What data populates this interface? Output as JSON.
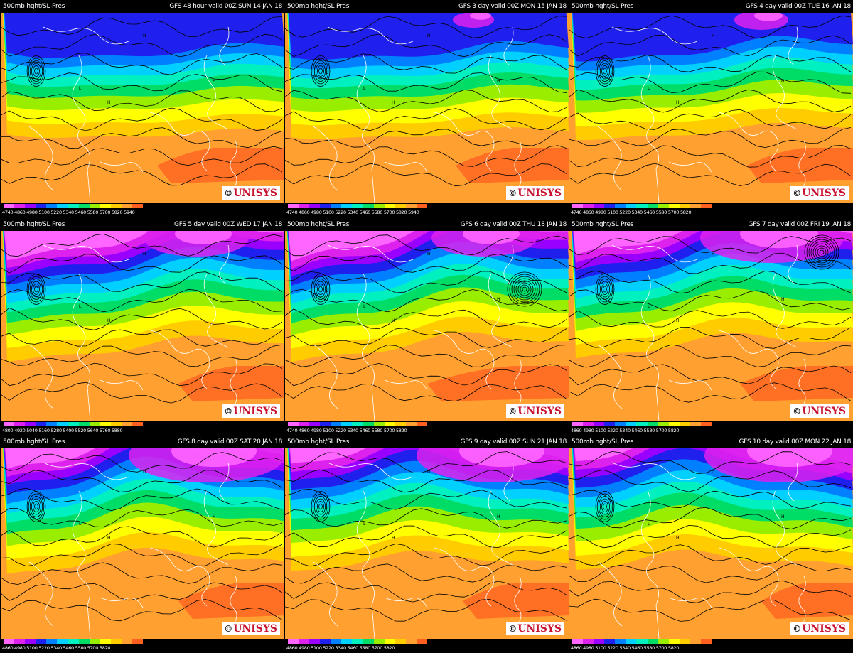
{
  "panels": [
    {
      "left_title": "500mb hght/SL Pres",
      "right_title": "GFS 48 hour valid 00Z SUN 14 JAN 18",
      "ticks": "4740 4860 4980 5100 5220 5340 5460 5580 5700 5820 5940",
      "logo": "UNISYS"
    },
    {
      "left_title": "500mb hght/SL Pres",
      "right_title": "GFS 3 day valid 00Z MON 15 JAN 18",
      "ticks": "4740 4860 4980 5100 5220 5340 5460 5580 5700 5820 5940",
      "logo": "UNISYS"
    },
    {
      "left_title": "500mb hght/SL Pres",
      "right_title": "GFS 4 day valid 00Z TUE 16 JAN 18",
      "ticks": "4740 4860 4980 5100 5220 5340 5460 5580 5700 5820",
      "logo": "UNISYS"
    },
    {
      "left_title": "500mb hght/SL Pres",
      "right_title": "GFS 5 day valid 00Z WED 17 JAN 18",
      "ticks": "4800 4920 5040 5160 5280 5400 5520 5640 5760 5880",
      "logo": "UNISYS"
    },
    {
      "left_title": "500mb hght/SL Pres",
      "right_title": "GFS 6 day valid 00Z THU 18 JAN 18",
      "ticks": "4740 4860 4980 5100 5220 5340 5460 5580 5700 5820",
      "logo": "UNISYS"
    },
    {
      "left_title": "500mb hght/SL Pres",
      "right_title": "GFS 7 day valid 00Z FRI 19 JAN 18",
      "ticks": "4860 4980 5100 5220 5340 5460 5580 5700 5820",
      "logo": "UNISYS"
    },
    {
      "left_title": "500mb hght/SL Pres",
      "right_title": "GFS 8 day valid 00Z SAT 20 JAN 18",
      "ticks": "4860 4980 5100 5220 5340 5460 5580 5700 5820",
      "logo": "UNISYS"
    },
    {
      "left_title": "500mb hght/SL Pres",
      "right_title": "GFS 9 day valid 00Z SUN 21 JAN 18",
      "ticks": "4860 4980 5100 5220 5340 5460 5580 5700 5820",
      "logo": "UNISYS"
    },
    {
      "left_title": "500mb hght/SL Pres",
      "right_title": "GFS 10 day valid 00Z MON 22 JAN 18",
      "ticks": "4860 4980 5100 5220 5340 5460 5580 5700 5820",
      "logo": "UNISYS"
    }
  ],
  "colors": {
    "background": "#000000",
    "coastline": "#ffffff",
    "isobar": "#000000",
    "logo_red": "#c8102e",
    "scale": [
      "#ff66ff",
      "#dd22ee",
      "#9900ff",
      "#2020ee",
      "#0080ff",
      "#00d0ff",
      "#00f0c0",
      "#00dd66",
      "#99ee00",
      "#ffff00",
      "#ffcc00",
      "#ffa030",
      "#ff6020"
    ]
  }
}
